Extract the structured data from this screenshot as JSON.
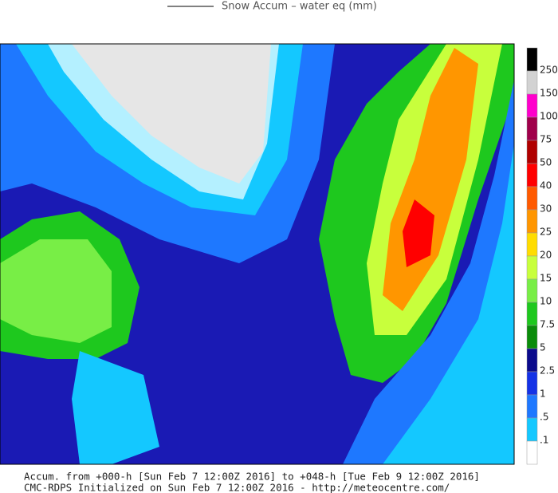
{
  "header": {
    "title": "Snow Accum – water eq (mm)"
  },
  "colorbar": {
    "colors": [
      "#000000",
      "#d2d2d2",
      "#ff00cc",
      "#a0004b",
      "#b00000",
      "#ff0000",
      "#ff5a00",
      "#ff9600",
      "#ffdc00",
      "#c8ff3c",
      "#78ee46",
      "#1ec81e",
      "#0a8c0a",
      "#0a0a8c",
      "#1432e6",
      "#1e78ff",
      "#14c8ff",
      "#ffffff"
    ],
    "labels": [
      "250",
      "150",
      "100",
      "75",
      "50",
      "40",
      "30",
      "25",
      "20",
      "15",
      "10",
      "7.5",
      "5",
      "2.5",
      "1",
      ".5",
      ".1"
    ]
  },
  "footer": {
    "line1": "Accum. from +000-h [Sun Feb 7 12:00Z 2016] to +048-h [Tue Feb 9 12:00Z 2016]",
    "line2": "CMC-RDPS Initialized on Sun Feb 7 12:00Z 2016 - http://meteocentre.com/"
  }
}
